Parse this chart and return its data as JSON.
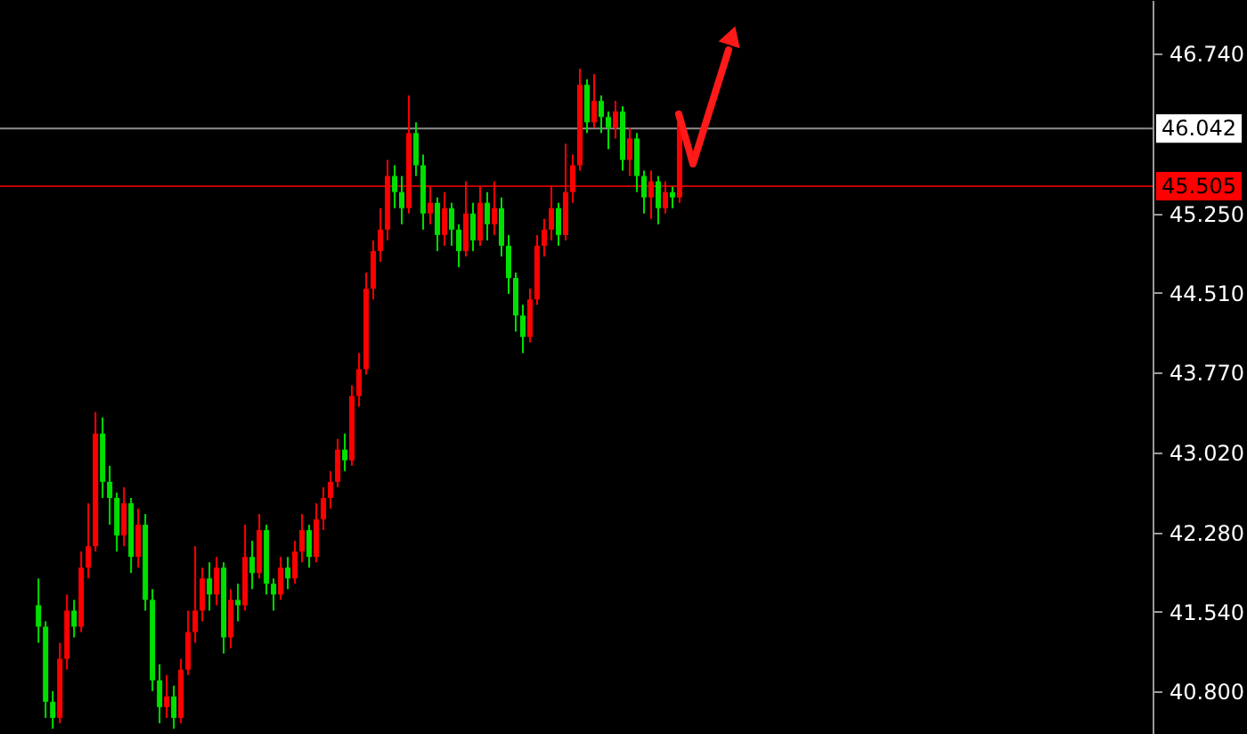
{
  "chart_data": {
    "type": "candlestick",
    "categories": [
      null,
      null,
      null,
      null,
      null,
      null,
      null,
      null,
      null,
      null,
      null,
      null,
      null,
      null,
      null,
      null,
      null,
      null,
      null,
      null,
      null,
      null,
      null,
      null,
      null,
      null,
      null,
      null,
      null,
      null,
      null,
      null,
      null,
      null,
      null,
      null,
      null,
      null,
      null,
      null,
      null,
      null,
      null,
      null,
      null,
      null,
      null,
      null,
      null,
      null,
      null,
      null,
      null,
      null,
      null,
      null,
      null,
      null,
      null,
      null,
      null,
      null,
      null,
      null,
      null,
      null,
      null,
      null,
      null,
      null,
      null,
      null,
      null,
      null,
      null,
      null,
      null,
      null,
      null,
      null,
      null,
      null,
      null,
      null,
      null,
      null,
      null,
      null,
      null,
      null,
      null,
      null,
      null,
      null,
      null,
      null,
      null,
      null,
      null,
      null,
      null,
      null,
      null,
      null,
      null,
      null,
      null,
      null,
      null,
      null,
      null,
      null,
      null,
      null,
      null,
      null,
      null,
      null,
      null,
      null,
      null,
      null,
      null,
      null,
      null,
      null,
      null,
      null,
      null,
      null,
      null,
      null,
      null,
      null,
      null,
      null,
      null,
      null,
      null,
      null,
      null,
      null,
      null,
      null,
      null,
      null,
      null,
      null,
      null,
      null,
      null,
      null,
      null,
      null,
      null,
      null,
      null,
      null,
      null,
      null,
      null,
      null
    ],
    "ohlc": [
      null,
      null,
      null,
      null,
      null,
      [
        41.6,
        41.85,
        41.25,
        41.4
      ],
      [
        41.4,
        41.45,
        40.55,
        40.7
      ],
      [
        40.7,
        40.8,
        40.45,
        40.55
      ],
      [
        40.55,
        41.25,
        40.5,
        41.1
      ],
      [
        41.1,
        41.7,
        41.0,
        41.55
      ],
      [
        41.55,
        41.65,
        41.3,
        41.4
      ],
      [
        41.4,
        42.1,
        41.35,
        41.95
      ],
      [
        41.95,
        42.55,
        41.85,
        42.15
      ],
      [
        42.15,
        43.4,
        42.1,
        43.2
      ],
      [
        43.2,
        43.35,
        42.6,
        42.75
      ],
      [
        42.75,
        42.9,
        42.35,
        42.6
      ],
      [
        42.6,
        42.65,
        42.1,
        42.25
      ],
      [
        42.25,
        42.7,
        42.15,
        42.55
      ],
      [
        42.55,
        42.6,
        41.9,
        42.05
      ],
      [
        42.05,
        42.5,
        41.95,
        42.35
      ],
      [
        42.35,
        42.45,
        41.55,
        41.65
      ],
      [
        41.65,
        41.75,
        40.8,
        40.9
      ],
      [
        40.9,
        41.05,
        40.5,
        40.65
      ],
      [
        40.65,
        40.95,
        40.55,
        40.75
      ],
      [
        40.75,
        40.85,
        40.45,
        40.55
      ],
      [
        40.55,
        41.1,
        40.5,
        41.0
      ],
      [
        41.0,
        41.55,
        40.95,
        41.35
      ],
      [
        41.35,
        42.15,
        41.25,
        41.55
      ],
      [
        41.55,
        41.95,
        41.45,
        41.85
      ],
      [
        41.85,
        42.0,
        41.55,
        41.7
      ],
      [
        41.7,
        42.05,
        41.6,
        41.95
      ],
      [
        41.95,
        42.0,
        41.15,
        41.3
      ],
      [
        41.3,
        41.75,
        41.2,
        41.65
      ],
      [
        41.65,
        41.8,
        41.45,
        41.6
      ],
      [
        41.6,
        42.35,
        41.55,
        42.05
      ],
      [
        42.05,
        42.2,
        41.75,
        41.9
      ],
      [
        41.9,
        42.45,
        41.85,
        42.3
      ],
      [
        42.3,
        42.35,
        41.7,
        41.8
      ],
      [
        41.8,
        41.85,
        41.55,
        41.7
      ],
      [
        41.7,
        42.05,
        41.65,
        41.95
      ],
      [
        41.95,
        42.05,
        41.75,
        41.85
      ],
      [
        41.85,
        42.2,
        41.8,
        42.1
      ],
      [
        42.1,
        42.45,
        42.0,
        42.3
      ],
      [
        42.3,
        42.35,
        41.95,
        42.05
      ],
      [
        42.05,
        42.55,
        42.0,
        42.4
      ],
      [
        42.4,
        42.7,
        42.3,
        42.6
      ],
      [
        42.6,
        42.85,
        42.5,
        42.75
      ],
      [
        42.75,
        43.15,
        42.7,
        43.05
      ],
      [
        43.05,
        43.2,
        42.85,
        42.95
      ],
      [
        42.95,
        43.65,
        42.9,
        43.55
      ],
      [
        43.55,
        43.95,
        43.45,
        43.8
      ],
      [
        43.8,
        44.7,
        43.75,
        44.55
      ],
      [
        44.55,
        45.0,
        44.45,
        44.9
      ],
      [
        44.9,
        45.3,
        44.8,
        45.1
      ],
      [
        45.1,
        45.75,
        45.0,
        45.6
      ],
      [
        45.6,
        45.7,
        45.3,
        45.45
      ],
      [
        45.45,
        45.6,
        45.15,
        45.3
      ],
      [
        45.3,
        46.35,
        45.25,
        46.0
      ],
      [
        46.0,
        46.1,
        45.6,
        45.7
      ],
      [
        45.7,
        45.8,
        45.1,
        45.25
      ],
      [
        45.25,
        45.5,
        45.15,
        45.35
      ],
      [
        45.35,
        45.4,
        44.9,
        45.05
      ],
      [
        45.05,
        45.45,
        44.95,
        45.3
      ],
      [
        45.3,
        45.35,
        44.95,
        45.1
      ],
      [
        45.1,
        45.15,
        44.75,
        44.9
      ],
      [
        44.9,
        45.55,
        44.85,
        45.25
      ],
      [
        45.25,
        45.35,
        44.9,
        45.0
      ],
      [
        45.0,
        45.5,
        44.95,
        45.35
      ],
      [
        45.35,
        45.45,
        45.0,
        45.15
      ],
      [
        45.15,
        45.55,
        45.05,
        45.3
      ],
      [
        45.3,
        45.4,
        44.85,
        44.95
      ],
      [
        44.95,
        45.05,
        44.5,
        44.65
      ],
      [
        44.65,
        44.7,
        44.15,
        44.3
      ],
      [
        44.3,
        44.4,
        43.95,
        44.1
      ],
      [
        44.1,
        44.55,
        44.05,
        44.45
      ],
      [
        44.45,
        45.05,
        44.4,
        44.95
      ],
      [
        44.95,
        45.2,
        44.85,
        45.1
      ],
      [
        45.1,
        45.5,
        45.0,
        45.3
      ],
      [
        45.3,
        45.35,
        44.95,
        45.05
      ],
      [
        45.05,
        45.9,
        45.0,
        45.45
      ],
      [
        45.45,
        45.8,
        45.35,
        45.7
      ],
      [
        45.7,
        46.6,
        45.65,
        46.45
      ],
      [
        46.45,
        46.5,
        46.0,
        46.1
      ],
      [
        46.1,
        46.55,
        46.05,
        46.3
      ],
      [
        46.3,
        46.35,
        46.0,
        46.15
      ],
      [
        46.15,
        46.2,
        45.85,
        46.05
      ],
      [
        46.05,
        46.3,
        45.95,
        46.2
      ],
      [
        46.2,
        46.25,
        45.65,
        45.75
      ],
      [
        45.75,
        46.05,
        45.6,
        45.95
      ],
      [
        45.95,
        46.0,
        45.45,
        45.6
      ],
      [
        45.6,
        45.65,
        45.25,
        45.4
      ],
      [
        45.4,
        45.65,
        45.2,
        45.55
      ],
      [
        45.55,
        45.6,
        45.15,
        45.3
      ],
      [
        45.3,
        45.55,
        45.25,
        45.45
      ],
      [
        45.45,
        45.5,
        45.3,
        45.4
      ],
      [
        45.4,
        46.2,
        45.35,
        46.1
      ],
      null,
      null,
      null,
      null,
      null,
      null,
      null,
      null,
      null,
      null,
      null,
      null,
      null,
      null,
      null,
      null,
      null,
      null,
      null,
      null,
      null,
      null,
      null,
      null,
      null,
      null,
      null,
      null,
      null,
      null,
      null,
      null,
      null,
      null,
      null,
      null,
      null,
      null,
      null,
      null,
      null,
      null,
      null,
      null,
      null,
      null,
      null,
      null,
      null,
      null,
      null,
      null,
      null,
      null,
      null,
      null,
      null,
      null,
      null,
      null,
      null,
      null,
      null,
      null,
      null,
      null
    ],
    "colors": [
      null,
      null,
      null,
      null,
      null,
      "#00e000",
      "#00e000",
      "#00e000",
      "#ff0000",
      "#ff0000",
      "#00e000",
      "#ff0000",
      "#ff0000",
      "#ff0000",
      "#00e000",
      "#00e000",
      "#00e000",
      "#ff0000",
      "#00e000",
      "#ff0000",
      "#00e000",
      "#00e000",
      "#00e000",
      "#ff0000",
      "#00e000",
      "#ff0000",
      "#ff0000",
      "#ff0000",
      "#ff0000",
      "#00e000",
      "#ff0000",
      "#00e000",
      "#ff0000",
      "#00e000",
      "#ff0000",
      "#00e000",
      "#ff0000",
      "#00e000",
      "#00e000",
      "#ff0000",
      "#00e000",
      "#ff0000",
      "#ff0000",
      "#00e000",
      "#ff0000",
      "#ff0000",
      "#ff0000",
      "#ff0000",
      "#00e000",
      "#ff0000",
      "#ff0000",
      "#ff0000",
      "#ff0000",
      "#ff0000",
      "#ff0000",
      "#00e000",
      "#00e000",
      "#ff0000",
      "#00e000",
      "#00e000",
      "#ff0000",
      "#00e000",
      "#ff0000",
      "#00e000",
      "#00e000",
      "#ff0000",
      "#00e000",
      "#ff0000",
      "#00e000",
      "#ff0000",
      "#00e000",
      "#00e000",
      "#00e000",
      "#00e000",
      "#ff0000",
      "#ff0000",
      "#ff0000",
      "#ff0000",
      "#00e000",
      "#ff0000",
      "#ff0000",
      "#ff0000",
      "#00e000",
      "#ff0000",
      "#00e000",
      "#00e000",
      "#ff0000",
      "#00e000",
      "#ff0000",
      "#00e000",
      "#00e000",
      "#ff0000",
      "#00e000",
      "#ff0000",
      "#00e000",
      "#ff0000",
      null,
      null,
      null,
      null,
      null,
      null,
      null,
      null,
      null,
      null,
      null,
      null,
      null,
      null,
      null,
      null,
      null,
      null,
      null,
      null,
      null,
      null,
      null,
      null,
      null,
      null,
      null,
      null,
      null,
      null,
      null,
      null,
      null,
      null,
      null,
      null,
      null,
      null,
      null,
      null,
      null,
      null,
      null,
      null,
      null,
      null,
      null,
      null,
      null,
      null,
      null,
      null,
      null,
      null,
      null,
      null,
      null,
      null,
      null,
      null,
      null,
      null,
      null,
      null,
      null,
      null
    ],
    "ylim": [
      40.4,
      47.24
    ],
    "yticks": [
      {
        "value": 40.8,
        "label": "40.800"
      },
      {
        "value": 41.54,
        "label": "41.540"
      },
      {
        "value": 42.28,
        "label": "42.280"
      },
      {
        "value": 43.02,
        "label": "43.020"
      },
      {
        "value": 43.77,
        "label": "43.770"
      },
      {
        "value": 44.51,
        "label": "44.510"
      },
      {
        "value": 45.25,
        "label": "45.250"
      },
      {
        "value": 46.74,
        "label": "46.740"
      }
    ],
    "tick_labels": "y",
    "grid": false,
    "ref_lines": [
      {
        "axis": "y",
        "value": 46.042,
        "label": "46.042",
        "color": "#8c8c8c"
      },
      {
        "axis": "y",
        "value": 45.505,
        "label": "45.505",
        "color": "#c00000"
      }
    ]
  }
}
